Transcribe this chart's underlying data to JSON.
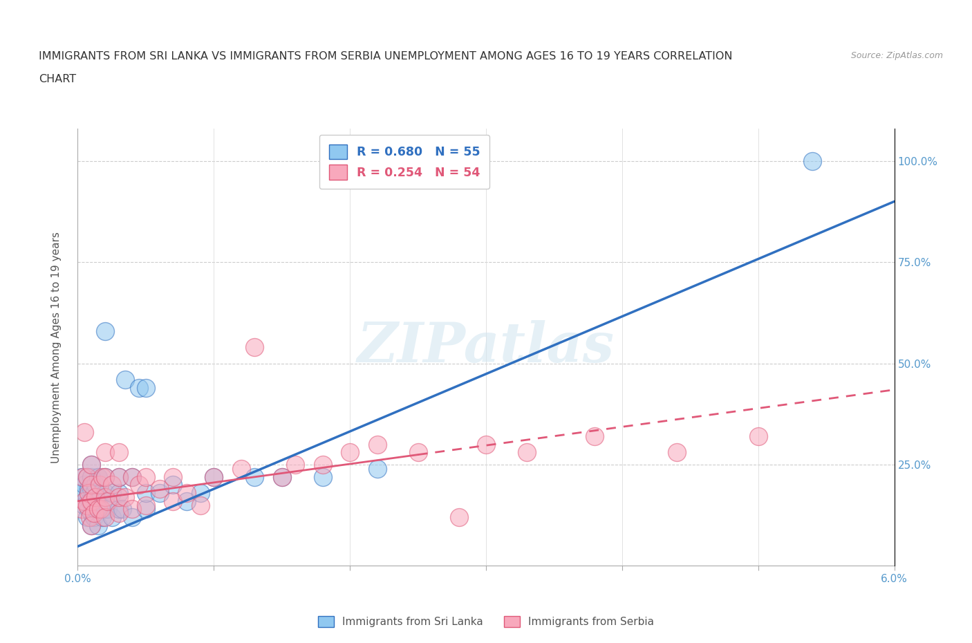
{
  "title_line1": "IMMIGRANTS FROM SRI LANKA VS IMMIGRANTS FROM SERBIA UNEMPLOYMENT AMONG AGES 16 TO 19 YEARS CORRELATION",
  "title_line2": "CHART",
  "source_text": "Source: ZipAtlas.com",
  "ylabel": "Unemployment Among Ages 16 to 19 years",
  "xlim": [
    0.0,
    0.06
  ],
  "ylim": [
    0.0,
    1.08
  ],
  "xticks": [
    0.0,
    0.01,
    0.02,
    0.03,
    0.04,
    0.05,
    0.06
  ],
  "xtick_labels": [
    "0.0%",
    "",
    "",
    "",
    "",
    "",
    "6.0%"
  ],
  "ytick_vals": [
    0.0,
    0.25,
    0.5,
    0.75,
    1.0
  ],
  "ytick_right_labels": [
    "",
    "25.0%",
    "50.0%",
    "75.0%",
    "100.0%"
  ],
  "sri_lanka_color": "#90C8F0",
  "serbia_color": "#F8A8BC",
  "sri_lanka_line_color": "#3070C0",
  "serbia_line_color": "#E05878",
  "sri_lanka_r": 0.68,
  "sri_lanka_n": 55,
  "serbia_r": 0.254,
  "serbia_n": 54,
  "watermark": "ZIPatlas",
  "background_color": "#FFFFFF",
  "sri_lanka_line_y0": 0.048,
  "sri_lanka_line_y1": 0.9,
  "serbia_line_y0": 0.16,
  "serbia_line_y1": 0.435,
  "sri_lanka_x": [
    0.0003,
    0.0003,
    0.0005,
    0.0005,
    0.0007,
    0.0007,
    0.0007,
    0.0008,
    0.0008,
    0.0009,
    0.001,
    0.001,
    0.001,
    0.001,
    0.001,
    0.001,
    0.0012,
    0.0012,
    0.0013,
    0.0013,
    0.0014,
    0.0015,
    0.0015,
    0.0015,
    0.0016,
    0.0017,
    0.0018,
    0.002,
    0.002,
    0.002,
    0.002,
    0.0022,
    0.0025,
    0.0025,
    0.003,
    0.003,
    0.003,
    0.0033,
    0.0035,
    0.004,
    0.004,
    0.0045,
    0.005,
    0.005,
    0.005,
    0.006,
    0.007,
    0.008,
    0.009,
    0.01,
    0.013,
    0.015,
    0.018,
    0.022,
    0.054
  ],
  "sri_lanka_y": [
    0.18,
    0.22,
    0.15,
    0.2,
    0.12,
    0.17,
    0.22,
    0.14,
    0.19,
    0.16,
    0.1,
    0.13,
    0.16,
    0.19,
    0.22,
    0.25,
    0.12,
    0.18,
    0.14,
    0.2,
    0.16,
    0.1,
    0.16,
    0.22,
    0.14,
    0.18,
    0.12,
    0.14,
    0.18,
    0.22,
    0.58,
    0.14,
    0.12,
    0.18,
    0.14,
    0.18,
    0.22,
    0.14,
    0.46,
    0.12,
    0.22,
    0.44,
    0.14,
    0.18,
    0.44,
    0.18,
    0.2,
    0.16,
    0.18,
    0.22,
    0.22,
    0.22,
    0.22,
    0.24,
    1.0
  ],
  "serbia_x": [
    0.0003,
    0.0004,
    0.0005,
    0.0005,
    0.0007,
    0.0007,
    0.0008,
    0.0009,
    0.001,
    0.001,
    0.001,
    0.001,
    0.0012,
    0.0013,
    0.0015,
    0.0016,
    0.0017,
    0.0018,
    0.002,
    0.002,
    0.002,
    0.002,
    0.0022,
    0.0025,
    0.003,
    0.003,
    0.003,
    0.003,
    0.0035,
    0.004,
    0.004,
    0.0045,
    0.005,
    0.005,
    0.006,
    0.007,
    0.007,
    0.008,
    0.009,
    0.01,
    0.012,
    0.013,
    0.015,
    0.016,
    0.018,
    0.02,
    0.022,
    0.025,
    0.028,
    0.03,
    0.033,
    0.038,
    0.044,
    0.05
  ],
  "serbia_y": [
    0.14,
    0.22,
    0.16,
    0.33,
    0.15,
    0.22,
    0.18,
    0.12,
    0.1,
    0.16,
    0.2,
    0.25,
    0.13,
    0.17,
    0.14,
    0.2,
    0.14,
    0.22,
    0.12,
    0.17,
    0.22,
    0.28,
    0.16,
    0.2,
    0.13,
    0.17,
    0.22,
    0.28,
    0.17,
    0.14,
    0.22,
    0.2,
    0.15,
    0.22,
    0.19,
    0.16,
    0.22,
    0.18,
    0.15,
    0.22,
    0.24,
    0.54,
    0.22,
    0.25,
    0.25,
    0.28,
    0.3,
    0.28,
    0.12,
    0.3,
    0.28,
    0.32,
    0.28,
    0.32
  ]
}
